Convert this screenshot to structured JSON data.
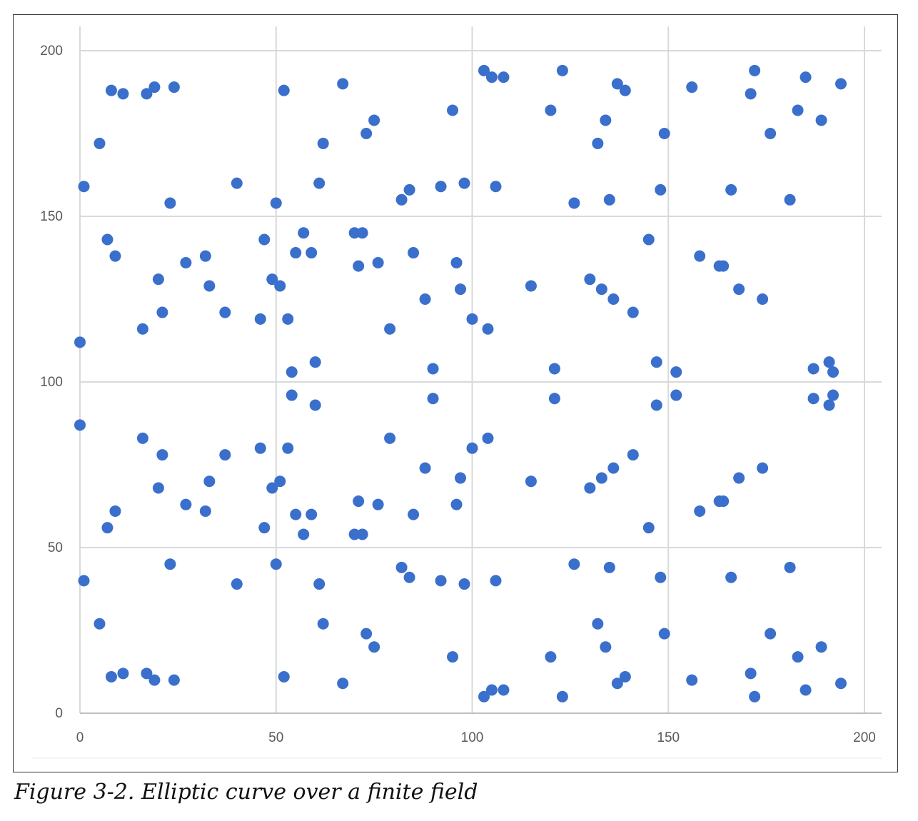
{
  "caption": "Figure 3-2. Elliptic curve over a finite field",
  "colors": {
    "point": "#3A6FCC",
    "grid": "#D9D9D9",
    "axis": "#BFBFBF",
    "tick_text": "#595959"
  },
  "chart_data": {
    "type": "scatter",
    "title": "",
    "xlabel": "",
    "ylabel": "",
    "xlim": [
      0,
      200
    ],
    "ylim": [
      0,
      200
    ],
    "x_ticks": [
      "0",
      "50",
      "100",
      "150",
      "200"
    ],
    "y_ticks": [
      "0",
      "50",
      "100",
      "150",
      "200"
    ],
    "grid": true,
    "legend": "none",
    "series": [
      {
        "points": [
          [
            0,
            112
          ],
          [
            0,
            87
          ],
          [
            1,
            159
          ],
          [
            1,
            40
          ],
          [
            5,
            172
          ],
          [
            5,
            27
          ],
          [
            7,
            143
          ],
          [
            7,
            56
          ],
          [
            8,
            188
          ],
          [
            8,
            11
          ],
          [
            9,
            138
          ],
          [
            9,
            61
          ],
          [
            11,
            187
          ],
          [
            11,
            12
          ],
          [
            16,
            116
          ],
          [
            16,
            83
          ],
          [
            17,
            187
          ],
          [
            17,
            12
          ],
          [
            19,
            189
          ],
          [
            19,
            10
          ],
          [
            20,
            131
          ],
          [
            20,
            68
          ],
          [
            21,
            121
          ],
          [
            21,
            78
          ],
          [
            23,
            154
          ],
          [
            23,
            45
          ],
          [
            24,
            189
          ],
          [
            24,
            10
          ],
          [
            27,
            136
          ],
          [
            27,
            63
          ],
          [
            32,
            138
          ],
          [
            32,
            61
          ],
          [
            33,
            129
          ],
          [
            33,
            70
          ],
          [
            37,
            121
          ],
          [
            37,
            78
          ],
          [
            40,
            160
          ],
          [
            40,
            39
          ],
          [
            46,
            119
          ],
          [
            46,
            80
          ],
          [
            47,
            143
          ],
          [
            47,
            56
          ],
          [
            49,
            131
          ],
          [
            49,
            68
          ],
          [
            50,
            154
          ],
          [
            50,
            45
          ],
          [
            51,
            129
          ],
          [
            51,
            70
          ],
          [
            52,
            188
          ],
          [
            52,
            11
          ],
          [
            53,
            119
          ],
          [
            53,
            80
          ],
          [
            54,
            103
          ],
          [
            54,
            96
          ],
          [
            55,
            139
          ],
          [
            55,
            60
          ],
          [
            57,
            145
          ],
          [
            57,
            54
          ],
          [
            59,
            139
          ],
          [
            59,
            60
          ],
          [
            60,
            106
          ],
          [
            60,
            93
          ],
          [
            61,
            160
          ],
          [
            61,
            39
          ],
          [
            62,
            172
          ],
          [
            62,
            27
          ],
          [
            67,
            190
          ],
          [
            67,
            9
          ],
          [
            70,
            145
          ],
          [
            70,
            54
          ],
          [
            71,
            135
          ],
          [
            71,
            64
          ],
          [
            72,
            145
          ],
          [
            72,
            54
          ],
          [
            73,
            175
          ],
          [
            73,
            24
          ],
          [
            75,
            179
          ],
          [
            75,
            20
          ],
          [
            76,
            136
          ],
          [
            76,
            63
          ],
          [
            79,
            116
          ],
          [
            79,
            83
          ],
          [
            82,
            155
          ],
          [
            82,
            44
          ],
          [
            84,
            158
          ],
          [
            84,
            41
          ],
          [
            85,
            139
          ],
          [
            85,
            60
          ],
          [
            88,
            125
          ],
          [
            88,
            74
          ],
          [
            90,
            104
          ],
          [
            90,
            95
          ],
          [
            92,
            159
          ],
          [
            92,
            40
          ],
          [
            95,
            182
          ],
          [
            95,
            17
          ],
          [
            96,
            136
          ],
          [
            96,
            63
          ],
          [
            97,
            128
          ],
          [
            97,
            71
          ],
          [
            98,
            160
          ],
          [
            98,
            39
          ],
          [
            100,
            119
          ],
          [
            100,
            80
          ],
          [
            103,
            194
          ],
          [
            103,
            5
          ],
          [
            104,
            116
          ],
          [
            104,
            83
          ],
          [
            105,
            192
          ],
          [
            105,
            7
          ],
          [
            106,
            159
          ],
          [
            106,
            40
          ],
          [
            108,
            192
          ],
          [
            108,
            7
          ],
          [
            115,
            129
          ],
          [
            115,
            70
          ],
          [
            120,
            182
          ],
          [
            120,
            17
          ],
          [
            121,
            104
          ],
          [
            121,
            95
          ],
          [
            123,
            194
          ],
          [
            123,
            5
          ],
          [
            126,
            154
          ],
          [
            126,
            45
          ],
          [
            130,
            131
          ],
          [
            130,
            68
          ],
          [
            132,
            172
          ],
          [
            132,
            27
          ],
          [
            133,
            128
          ],
          [
            133,
            71
          ],
          [
            134,
            179
          ],
          [
            134,
            20
          ],
          [
            135,
            155
          ],
          [
            135,
            44
          ],
          [
            136,
            125
          ],
          [
            136,
            74
          ],
          [
            137,
            190
          ],
          [
            137,
            9
          ],
          [
            139,
            188
          ],
          [
            139,
            11
          ],
          [
            141,
            121
          ],
          [
            141,
            78
          ],
          [
            145,
            143
          ],
          [
            145,
            56
          ],
          [
            147,
            106
          ],
          [
            147,
            93
          ],
          [
            148,
            158
          ],
          [
            148,
            41
          ],
          [
            149,
            175
          ],
          [
            149,
            24
          ],
          [
            152,
            103
          ],
          [
            152,
            96
          ],
          [
            156,
            189
          ],
          [
            156,
            10
          ],
          [
            158,
            138
          ],
          [
            158,
            61
          ],
          [
            163,
            135
          ],
          [
            163,
            64
          ],
          [
            164,
            135
          ],
          [
            164,
            64
          ],
          [
            166,
            158
          ],
          [
            166,
            41
          ],
          [
            168,
            128
          ],
          [
            168,
            71
          ],
          [
            171,
            187
          ],
          [
            171,
            12
          ],
          [
            172,
            194
          ],
          [
            172,
            5
          ],
          [
            174,
            125
          ],
          [
            174,
            74
          ],
          [
            176,
            175
          ],
          [
            176,
            24
          ],
          [
            181,
            155
          ],
          [
            181,
            44
          ],
          [
            183,
            182
          ],
          [
            183,
            17
          ],
          [
            185,
            192
          ],
          [
            185,
            7
          ],
          [
            187,
            104
          ],
          [
            187,
            95
          ],
          [
            189,
            179
          ],
          [
            189,
            20
          ],
          [
            191,
            106
          ],
          [
            191,
            93
          ],
          [
            192,
            103
          ],
          [
            192,
            96
          ],
          [
            194,
            190
          ],
          [
            194,
            9
          ]
        ]
      }
    ]
  }
}
